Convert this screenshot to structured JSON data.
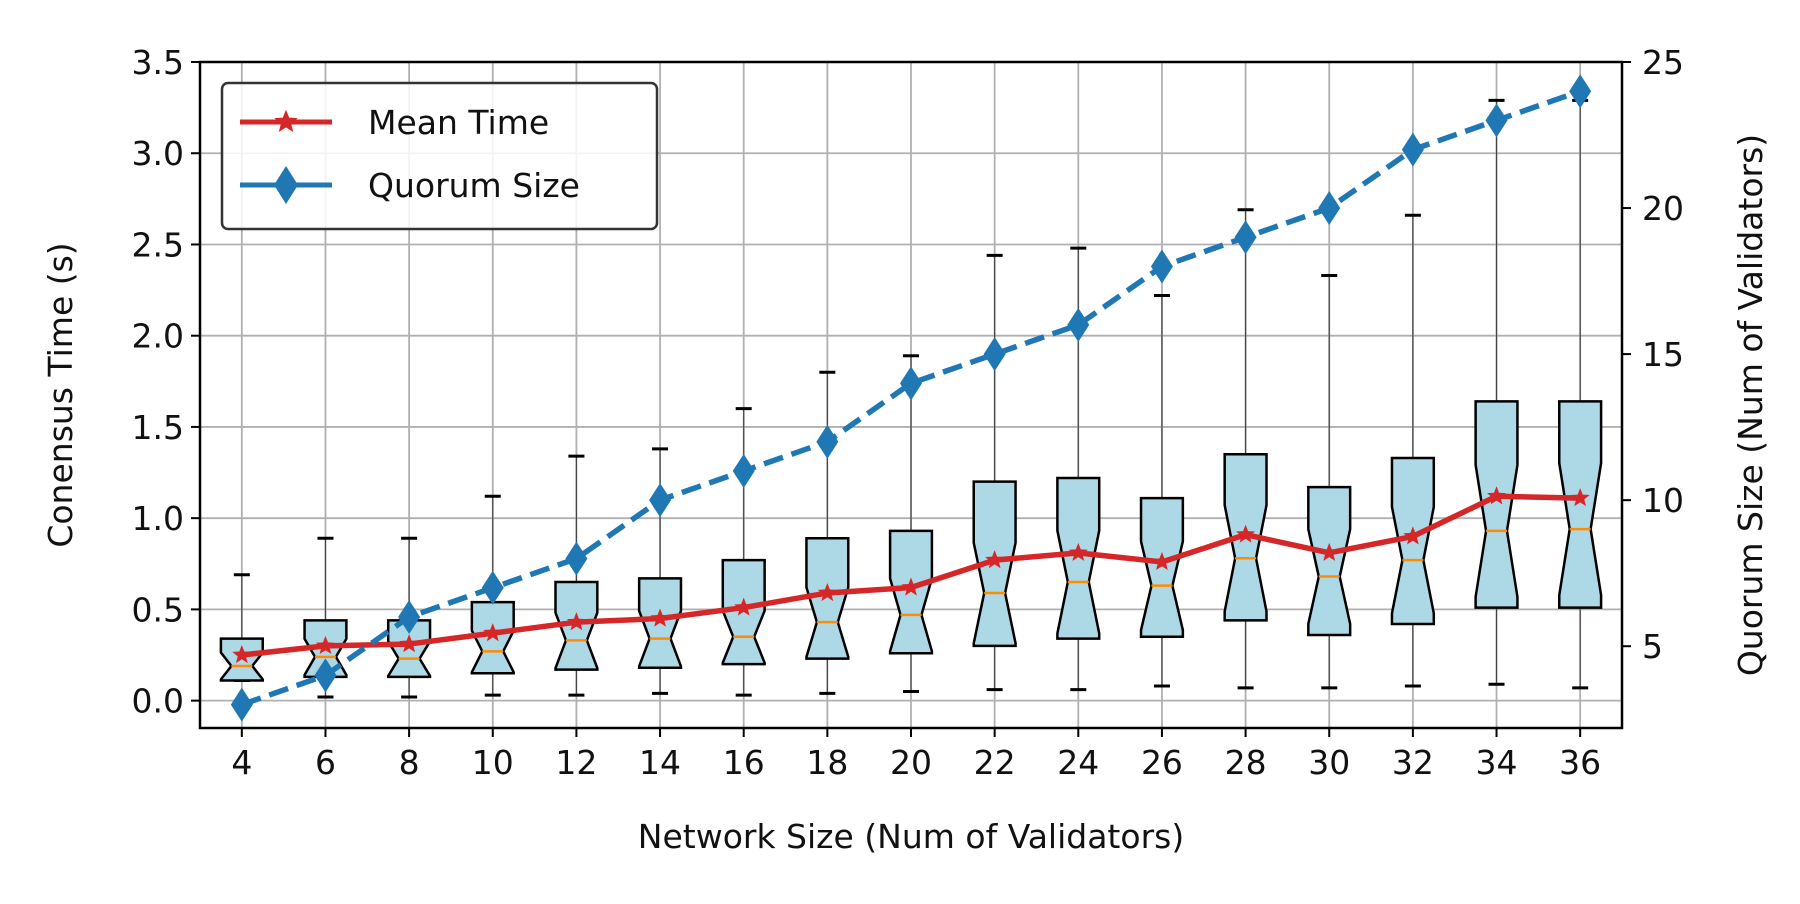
{
  "chart_data": {
    "type": "box",
    "title": "",
    "xlabel": "Network Size (Num of Validators)",
    "ylabel": "Conensus Time (s)",
    "y2label": "Quorum Size (Num of Validators)",
    "categories": [
      4,
      6,
      8,
      10,
      12,
      14,
      16,
      18,
      20,
      22,
      24,
      26,
      28,
      30,
      32,
      34,
      36
    ],
    "ylim": [
      -0.15,
      3.5
    ],
    "y2lim": [
      2.2,
      25
    ],
    "yticks": [
      "0.0",
      "0.5",
      "1.0",
      "1.5",
      "2.0",
      "2.5",
      "3.0",
      "3.5"
    ],
    "y2ticks": [
      "5",
      "10",
      "15",
      "20",
      "25"
    ],
    "grid": true,
    "legend_position": "top-left",
    "boxes": [
      {
        "x": 4,
        "whisker_low": 0.11,
        "q1": 0.11,
        "median": 0.19,
        "q3": 0.34,
        "whisker_high": 0.69
      },
      {
        "x": 6,
        "whisker_low": 0.02,
        "q1": 0.13,
        "median": 0.24,
        "q3": 0.44,
        "whisker_high": 0.89
      },
      {
        "x": 8,
        "whisker_low": 0.02,
        "q1": 0.13,
        "median": 0.23,
        "q3": 0.44,
        "whisker_high": 0.89
      },
      {
        "x": 10,
        "whisker_low": 0.03,
        "q1": 0.15,
        "median": 0.27,
        "q3": 0.54,
        "whisker_high": 1.12
      },
      {
        "x": 12,
        "whisker_low": 0.03,
        "q1": 0.17,
        "median": 0.33,
        "q3": 0.65,
        "whisker_high": 1.34
      },
      {
        "x": 14,
        "whisker_low": 0.04,
        "q1": 0.18,
        "median": 0.34,
        "q3": 0.67,
        "whisker_high": 1.38
      },
      {
        "x": 16,
        "whisker_low": 0.03,
        "q1": 0.2,
        "median": 0.35,
        "q3": 0.77,
        "whisker_high": 1.6
      },
      {
        "x": 18,
        "whisker_low": 0.04,
        "q1": 0.23,
        "median": 0.43,
        "q3": 0.89,
        "whisker_high": 1.8
      },
      {
        "x": 20,
        "whisker_low": 0.05,
        "q1": 0.26,
        "median": 0.47,
        "q3": 0.93,
        "whisker_high": 1.89
      },
      {
        "x": 22,
        "whisker_low": 0.06,
        "q1": 0.3,
        "median": 0.59,
        "q3": 1.2,
        "whisker_high": 2.44
      },
      {
        "x": 24,
        "whisker_low": 0.06,
        "q1": 0.34,
        "median": 0.65,
        "q3": 1.22,
        "whisker_high": 2.48
      },
      {
        "x": 26,
        "whisker_low": 0.08,
        "q1": 0.35,
        "median": 0.63,
        "q3": 1.11,
        "whisker_high": 2.22
      },
      {
        "x": 28,
        "whisker_low": 0.07,
        "q1": 0.44,
        "median": 0.78,
        "q3": 1.35,
        "whisker_high": 2.69
      },
      {
        "x": 30,
        "whisker_low": 0.07,
        "q1": 0.36,
        "median": 0.68,
        "q3": 1.17,
        "whisker_high": 2.33
      },
      {
        "x": 32,
        "whisker_low": 0.08,
        "q1": 0.42,
        "median": 0.77,
        "q3": 1.33,
        "whisker_high": 2.66
      },
      {
        "x": 34,
        "whisker_low": 0.09,
        "q1": 0.51,
        "median": 0.93,
        "q3": 1.64,
        "whisker_high": 3.29
      },
      {
        "x": 36,
        "whisker_low": 0.07,
        "q1": 0.51,
        "median": 0.94,
        "q3": 1.64,
        "whisker_high": 3.29
      }
    ],
    "series": [
      {
        "name": "Mean Time",
        "axis": "left",
        "marker": "star",
        "line": "solid",
        "color": "#d62728",
        "values": [
          0.25,
          0.3,
          0.31,
          0.37,
          0.43,
          0.45,
          0.51,
          0.59,
          0.62,
          0.77,
          0.81,
          0.76,
          0.91,
          0.81,
          0.9,
          1.12,
          1.11
        ]
      },
      {
        "name": "Quorum Size",
        "axis": "right",
        "marker": "diamond",
        "line": "dashed",
        "color": "#1f77b4",
        "values": [
          3,
          4,
          6,
          7,
          8,
          10,
          11,
          12,
          14,
          15,
          16,
          18,
          19,
          20,
          22,
          23,
          24
        ]
      }
    ],
    "colors": {
      "box_fill": "#add8e6",
      "box_edge": "#000000",
      "median": "#ff8c00",
      "grid": "#b0b0b0"
    }
  }
}
